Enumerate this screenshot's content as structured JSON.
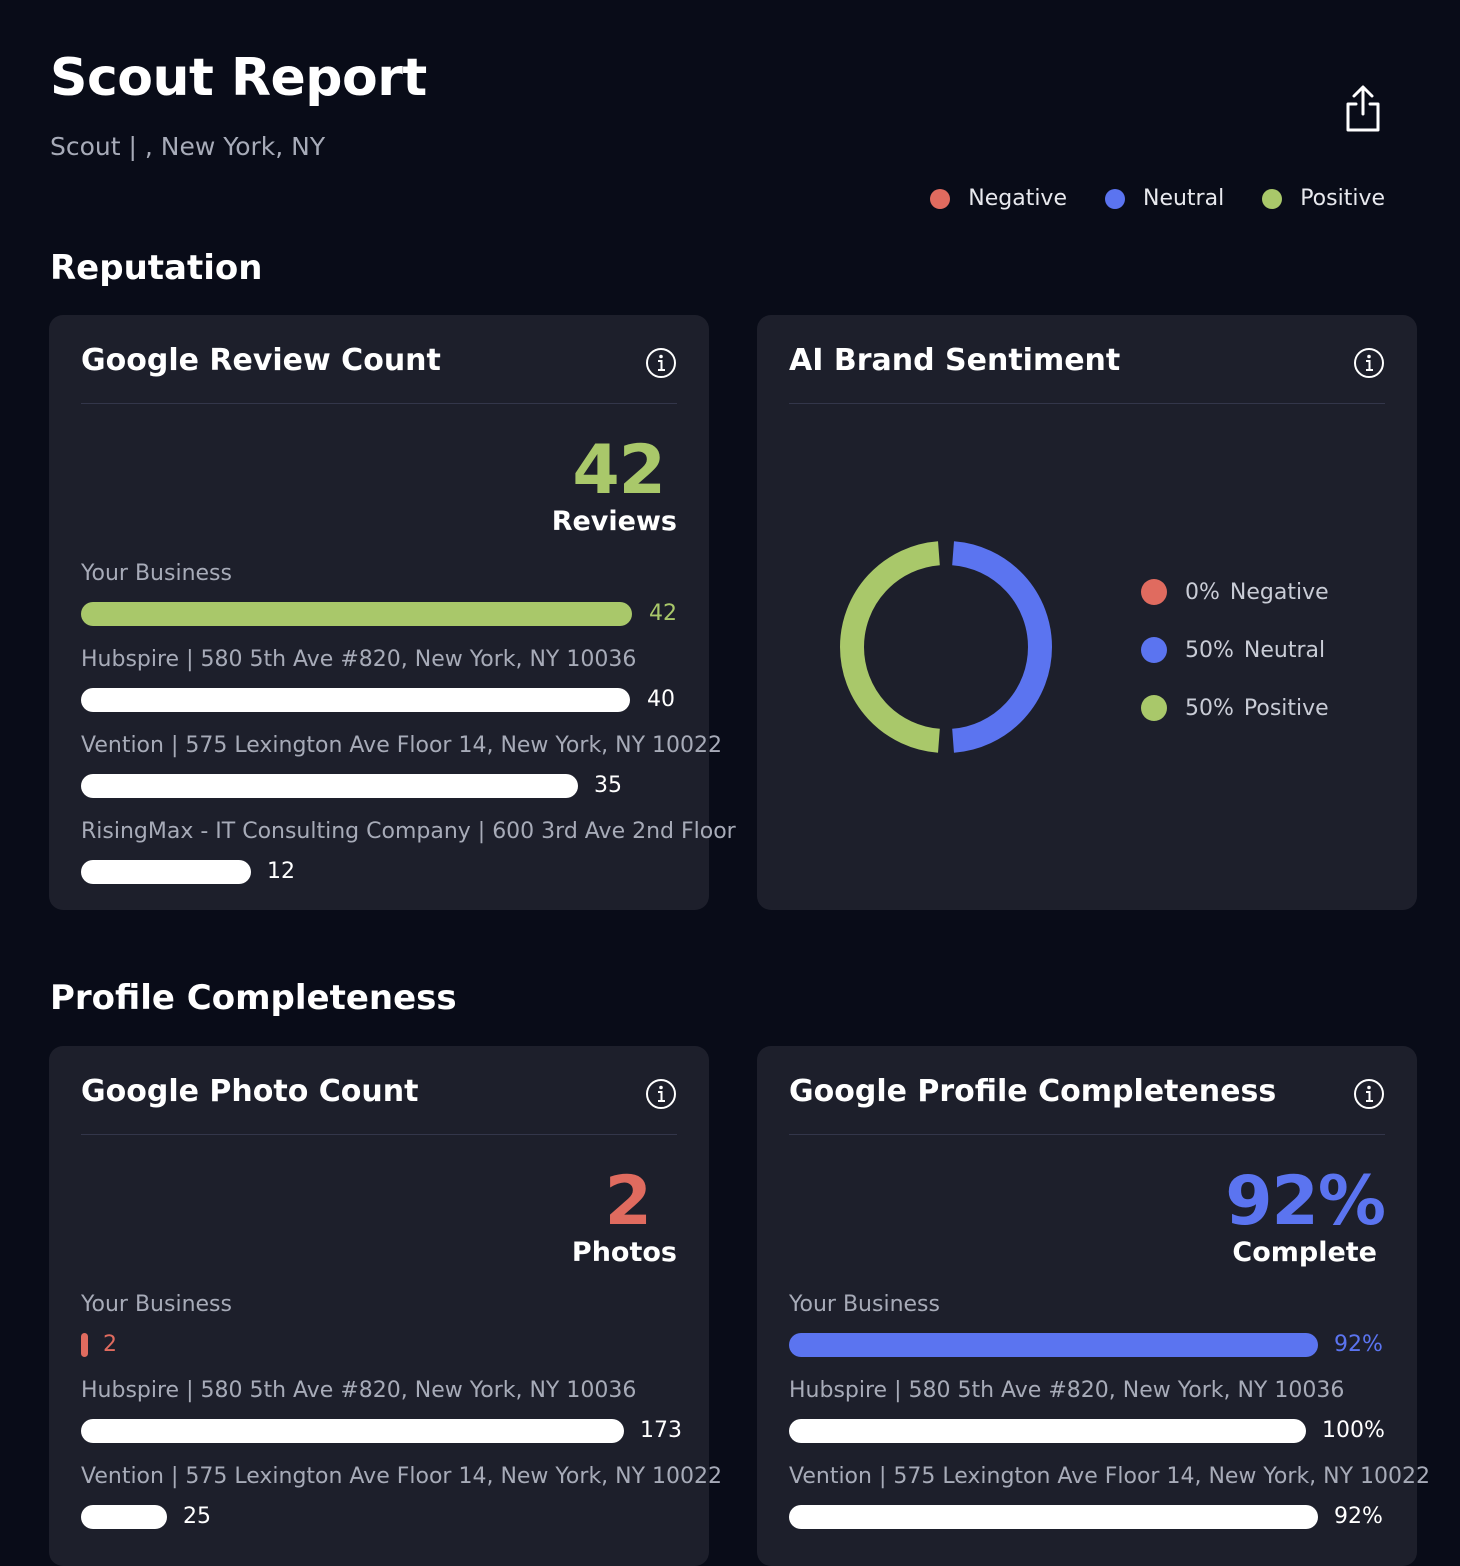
{
  "header": {
    "title": "Scout Report",
    "subtitle": "Scout | , New York, NY"
  },
  "legend": [
    {
      "label": "Negative",
      "color": "#e06b5f"
    },
    {
      "label": "Neutral",
      "color": "#5b74f0"
    },
    {
      "label": "Positive",
      "color": "#a9c86a"
    }
  ],
  "sections": {
    "reputation": "Reputation",
    "profile": "Profile Completeness"
  },
  "review_card": {
    "title": "Google Review Count",
    "big_value": "42",
    "unit": "Reviews",
    "rows": [
      {
        "label": "Your Business",
        "value": "42",
        "fraction": 1.0
      },
      {
        "label": "Hubspire | 580 5th Ave #820, New York, NY 10036",
        "value": "40",
        "fraction": 0.952
      },
      {
        "label": "Vention | 575 Lexington Ave Floor 14, New York, NY 10022",
        "value": "35",
        "fraction": 0.833
      },
      {
        "label": "RisingMax - IT Consulting Company | 600 3rd Ave 2nd Floor",
        "value": "12",
        "fraction": 0.286
      }
    ]
  },
  "sentiment_card": {
    "title": "AI Brand Sentiment",
    "items": [
      {
        "percent": "0%",
        "label": "Negative",
        "value": 0,
        "color": "#e06b5f"
      },
      {
        "percent": "50%",
        "label": "Neutral",
        "value": 50,
        "color": "#5b74f0"
      },
      {
        "percent": "50%",
        "label": "Positive",
        "value": 50,
        "color": "#a9c86a"
      }
    ]
  },
  "photo_card": {
    "title": "Google Photo Count",
    "big_value": "2",
    "unit": "Photos",
    "rows": [
      {
        "label": "Your Business",
        "value": "2",
        "fraction": 0.012
      },
      {
        "label": "Hubspire | 580 5th Ave #820, New York, NY 10036",
        "value": "173",
        "fraction": 1.0
      },
      {
        "label": "Vention | 575 Lexington Ave Floor 14, New York, NY 10022",
        "value": "25",
        "fraction": 0.145
      }
    ]
  },
  "completeness_card": {
    "title": "Google Profile Completeness",
    "big_value": "92%",
    "unit": "Complete",
    "rows": [
      {
        "label": "Your Business",
        "value": "92%",
        "fraction": 0.92
      },
      {
        "label": "Hubspire | 580 5th Ave #820, New York, NY 10036",
        "value": "100%",
        "fraction": 1.0
      },
      {
        "label": "Vention | 575 Lexington Ave Floor 14, New York, NY 10022",
        "value": "92%",
        "fraction": 0.92
      }
    ]
  }
}
